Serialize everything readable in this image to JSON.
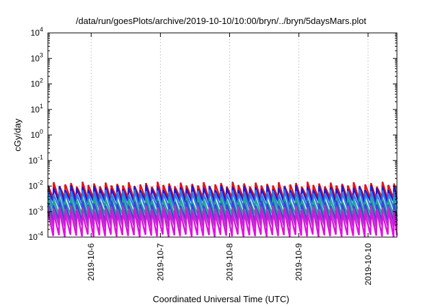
{
  "chart_data": {
    "type": "line",
    "title": "/data/run/goesPlots/archive/2019-10-10/10:00/bryn/../bryn/5daysMars.plot",
    "xlabel": "Coordinated Universal Time (UTC)",
    "ylabel": "cGy/day",
    "y_scale": "log",
    "ylim": [
      0.0001,
      10000
    ],
    "xlim": [
      "2019-10-05T09:00",
      "2019-10-10T10:00"
    ],
    "grid": true,
    "legend": "none",
    "reference_lines": [
      0.01
    ],
    "x_ticks": [
      {
        "label": "2019-10-6",
        "date": "2019-10-06T00:00"
      },
      {
        "label": "2019-10-7",
        "date": "2019-10-07T00:00"
      },
      {
        "label": "2019-10-8",
        "date": "2019-10-08T00:00"
      },
      {
        "label": "2019-10-9",
        "date": "2019-10-09T00:00"
      },
      {
        "label": "2019-10-10",
        "date": "2019-10-10T00:00"
      }
    ],
    "y_ticks": [
      {
        "base": "10",
        "exp": "-4",
        "value": 0.0001
      },
      {
        "base": "10",
        "exp": "-3",
        "value": 0.001
      },
      {
        "base": "10",
        "exp": "-2",
        "value": 0.01
      },
      {
        "base": "10",
        "exp": "-1",
        "value": 0.1
      },
      {
        "base": "10",
        "exp": "0",
        "value": 1
      },
      {
        "base": "10",
        "exp": "1",
        "value": 10
      },
      {
        "base": "10",
        "exp": "2",
        "value": 100
      },
      {
        "base": "10",
        "exp": "3",
        "value": 1000
      },
      {
        "base": "10",
        "exp": "4",
        "value": 10000
      }
    ],
    "sawtooth_period_hours": 2,
    "series": [
      {
        "color": "#e8101a",
        "peak": 0.0105,
        "trough": 0.0034
      },
      {
        "color": "#1a1ad8",
        "peak": 0.0078,
        "trough": 0.0024
      },
      {
        "color": "#2d7be6",
        "peak": 0.0052,
        "trough": 0.0014
      },
      {
        "color": "#20a890",
        "peak": 0.0028,
        "trough": 0.00075
      },
      {
        "color": "#4040e0",
        "peak": 0.0019,
        "trough": 0.00045
      },
      {
        "color": "#a040c0",
        "peak": 0.0013,
        "trough": 0.00028
      },
      {
        "color": "#e010e0",
        "peak": 0.0009,
        "trough": 0.00012
      }
    ]
  }
}
